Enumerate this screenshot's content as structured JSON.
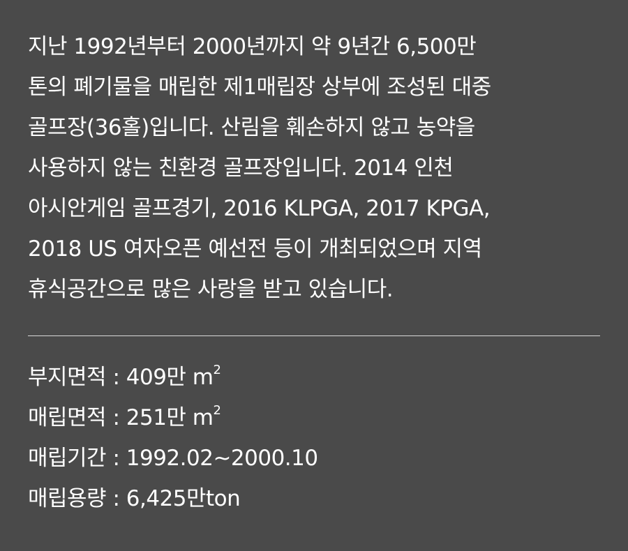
{
  "description": {
    "lines": [
      "지난 1992년부터 2000년까지 약 9년간 6,500만",
      "톤의 폐기물을 매립한 제1매립장 상부에 조성된 대중",
      "골프장(36홀)입니다. 산림을 훼손하지 않고 농약을",
      "사용하지 않는 친환경 골프장입니다. 2014 인천",
      "아시안게임 골프경기, 2016 KLPGA, 2017 KPGA,",
      "2018 US 여자오픈 예선전 등이 개최되었으며 지역",
      "휴식공간으로 많은 사랑을 받고 있습니다."
    ]
  },
  "specs": [
    {
      "label": "부지면적",
      "separator": " : ",
      "value": "409만 m",
      "sup": "2"
    },
    {
      "label": "매립면적",
      "separator": " : ",
      "value": "251만 m",
      "sup": "2"
    },
    {
      "label": "매립기간",
      "separator": " : ",
      "value": "1992.02~2000.10",
      "sup": ""
    },
    {
      "label": "매립용량",
      "separator": " : ",
      "value": "6,425만ton",
      "sup": ""
    }
  ]
}
